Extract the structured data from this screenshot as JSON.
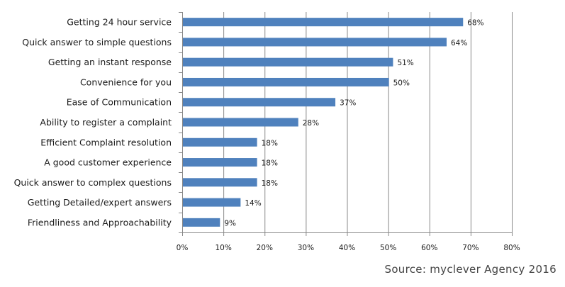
{
  "chart_data": {
    "type": "bar",
    "orientation": "horizontal",
    "title": "",
    "xlabel": "",
    "ylabel": "",
    "categories": [
      "Getting 24 hour service",
      "Quick answer to simple questions",
      "Getting an instant  response",
      "Convenience for you",
      "Ease of Communication",
      "Ability to register a complaint",
      "Efficient Complaint resolution",
      "A good customer  experience",
      "Quick answer to complex questions",
      "Getting Detailed/expert answers",
      "Friendliness and Approachability"
    ],
    "values": [
      68,
      64,
      51,
      50,
      37,
      28,
      18,
      18,
      18,
      14,
      9
    ],
    "data_labels": [
      "68%",
      "64%",
      "51%",
      "50%",
      "37%",
      "28%",
      "18%",
      "18%",
      "18%",
      "14%",
      "9%"
    ],
    "xlim": [
      0,
      80
    ],
    "x_ticks": [
      0,
      10,
      20,
      30,
      40,
      50,
      60,
      70,
      80
    ],
    "x_tick_labels": [
      "0%",
      "10%",
      "20%",
      "30%",
      "40%",
      "50%",
      "60%",
      "70%",
      "80%"
    ],
    "grid": "vertical",
    "legend": "none",
    "bar_color": "#4f81bd",
    "grid_color": "#888888"
  },
  "source": "Source: myclever Agency 2016"
}
